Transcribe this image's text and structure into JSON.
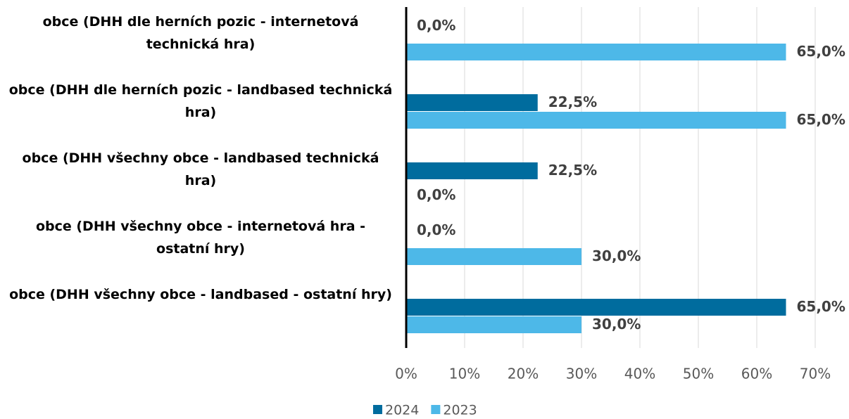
{
  "chart_data": {
    "type": "barh",
    "categories": [
      "obce (DHH dle herních pozic - internetová technická hra)",
      "obce (DHH dle herních pozic - landbased technická hra)",
      "obce (DHH všechny obce - landbased technická hra)",
      "obce (DHH všechny obce - internetová hra - ostatní hry)",
      "obce (DHH všechny obce - landbased - ostatní hry)"
    ],
    "series": [
      {
        "name": "2024",
        "color": "#006c9e",
        "values": [
          0,
          22.5,
          22.5,
          0,
          65
        ],
        "value_labels": [
          "0,0%",
          "22,5%",
          "22,5%",
          "0,0%",
          "65,0%"
        ]
      },
      {
        "name": "2023",
        "color": "#4db8e8",
        "values": [
          65,
          65,
          0,
          30,
          30
        ],
        "value_labels": [
          "65,0%",
          "65,0%",
          "0,0%",
          "30,0%",
          "30,0%"
        ]
      }
    ],
    "xlim": [
      0,
      70
    ],
    "xticks": [
      {
        "value": 0,
        "label": "0%"
      },
      {
        "value": 10,
        "label": "10%"
      },
      {
        "value": 20,
        "label": "20%"
      },
      {
        "value": 30,
        "label": "30%"
      },
      {
        "value": 40,
        "label": "40%"
      },
      {
        "value": 50,
        "label": "50%"
      },
      {
        "value": 60,
        "label": "60%"
      },
      {
        "value": 70,
        "label": "70%"
      }
    ],
    "grid": true,
    "legend": "bottom"
  }
}
